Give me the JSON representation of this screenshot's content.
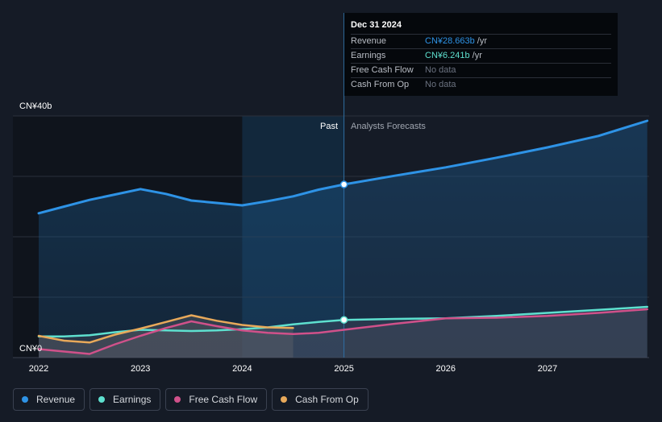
{
  "tooltip": {
    "date": "Dec 31 2024",
    "rows": [
      {
        "label": "Revenue",
        "value": "CN¥28.663b",
        "unit": "/yr",
        "color": "#2e93e6"
      },
      {
        "label": "Earnings",
        "value": "CN¥6.241b",
        "unit": "/yr",
        "color": "#5ee0cf"
      },
      {
        "label": "Free Cash Flow",
        "value": "No data",
        "unit": "",
        "color": "#6b7280"
      },
      {
        "label": "Cash From Op",
        "value": "No data",
        "unit": "",
        "color": "#6b7280"
      }
    ]
  },
  "labels": {
    "past": "Past",
    "forecast": "Analysts Forecasts",
    "y_top": "CN¥40b",
    "y_zero": "CN¥0"
  },
  "legend": [
    {
      "label": "Revenue",
      "color": "#2e93e6"
    },
    {
      "label": "Earnings",
      "color": "#5ee0cf"
    },
    {
      "label": "Free Cash Flow",
      "color": "#d0518a"
    },
    {
      "label": "Cash From Op",
      "color": "#e8a95a"
    }
  ],
  "chart_data": {
    "type": "line",
    "ylim": [
      0,
      40
    ],
    "xlim": [
      2021.9,
      2027.98
    ],
    "x_ticks": [
      "2022",
      "2023",
      "2024",
      "2025",
      "2026",
      "2027"
    ],
    "x_tick_values": [
      2022,
      2023,
      2024,
      2025,
      2026,
      2027
    ],
    "past_end": 2025.0,
    "highlight_start": 2024.0,
    "highlight_x": 2025.0,
    "series": [
      {
        "name": "Revenue",
        "color": "#2e93e6",
        "x": [
          2022.0,
          2022.25,
          2022.5,
          2022.75,
          2023.0,
          2023.25,
          2023.5,
          2023.75,
          2024.0,
          2024.25,
          2024.5,
          2024.75,
          2025.0,
          2025.5,
          2026.0,
          2026.5,
          2027.0,
          2027.5,
          2027.98
        ],
        "y": [
          23.9,
          25.0,
          26.1,
          27.0,
          27.9,
          27.1,
          26.0,
          25.6,
          25.2,
          25.9,
          26.7,
          27.8,
          28.66,
          30.1,
          31.5,
          33.1,
          34.8,
          36.7,
          39.2
        ]
      },
      {
        "name": "Earnings",
        "color": "#5ee0cf",
        "x": [
          2022.0,
          2022.25,
          2022.5,
          2022.75,
          2023.0,
          2023.25,
          2023.5,
          2023.75,
          2024.0,
          2024.25,
          2024.5,
          2024.75,
          2025.0,
          2025.5,
          2026.0,
          2026.5,
          2027.0,
          2027.5,
          2027.98
        ],
        "y": [
          3.5,
          3.5,
          3.7,
          4.2,
          4.6,
          4.5,
          4.4,
          4.5,
          4.7,
          5.0,
          5.5,
          5.9,
          6.24,
          6.4,
          6.5,
          6.9,
          7.4,
          7.9,
          8.4
        ]
      },
      {
        "name": "Free Cash Flow",
        "color": "#d0518a",
        "x": [
          2022.0,
          2022.25,
          2022.5,
          2022.75,
          2023.0,
          2023.25,
          2023.5,
          2023.75,
          2024.0,
          2024.25,
          2024.5,
          2024.75,
          2025.0,
          2025.5,
          2026.0,
          2026.5,
          2027.0,
          2027.5,
          2027.98
        ],
        "y": [
          1.4,
          1.0,
          0.6,
          2.2,
          3.6,
          4.9,
          6.0,
          5.2,
          4.5,
          4.1,
          3.9,
          4.1,
          4.6,
          5.6,
          6.5,
          6.6,
          6.9,
          7.4,
          8.0
        ]
      },
      {
        "name": "Cash From Op",
        "color": "#e8a95a",
        "x": [
          2022.0,
          2022.25,
          2022.5,
          2022.75,
          2023.0,
          2023.25,
          2023.5,
          2023.75,
          2024.0,
          2024.25,
          2024.5
        ],
        "y": [
          3.6,
          2.8,
          2.5,
          3.8,
          4.8,
          5.9,
          7.0,
          6.1,
          5.4,
          5.0,
          4.9
        ]
      }
    ]
  }
}
